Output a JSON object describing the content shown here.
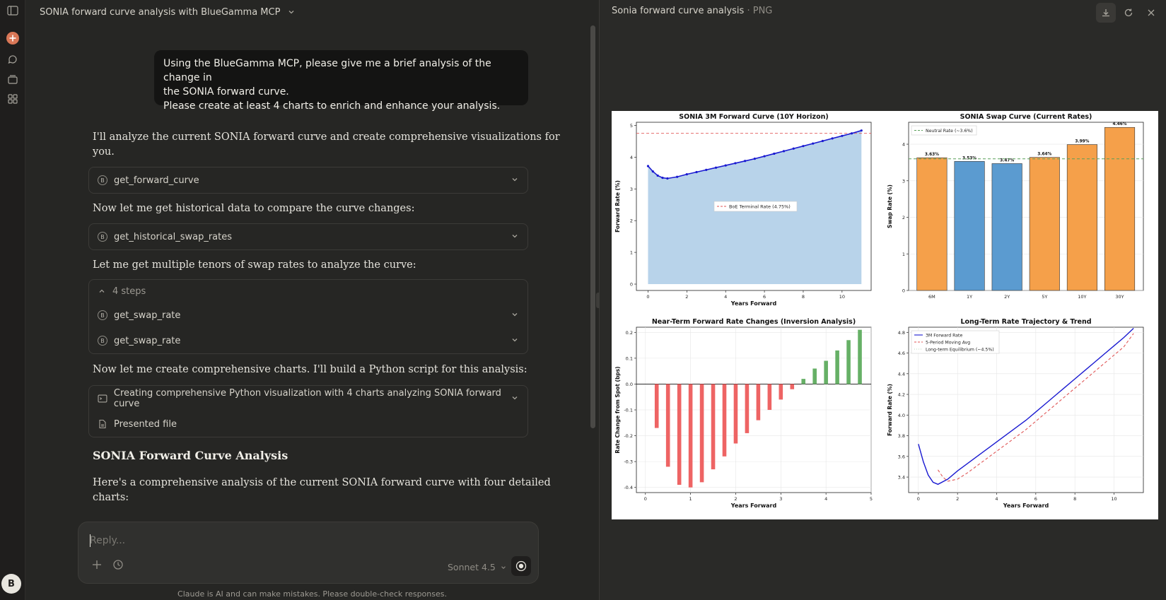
{
  "conversation": {
    "title": "SONIA forward curve analysis with BlueGamma MCP"
  },
  "user_message": {
    "line1": "Using the BlueGamma MCP, please give me a brief analysis of the change in",
    "line2": "the SONIA forward curve.",
    "line3": "Please create at least 4 charts to enrich and enhance your analysis."
  },
  "assistant": {
    "p1a": "I'll analyze the current SONIA forward curve and create comprehensive visualizations for",
    "p1b": "you.",
    "tool1": "get_forward_curve",
    "p2": "Now let me get historical data to compare the curve changes:",
    "tool2": "get_historical_swap_rates",
    "p3": "Let me get multiple tenors of swap rates to analyze the curve:",
    "steps_label": "4 steps",
    "step1": "get_swap_rate",
    "step2": "get_swap_rate",
    "p4": "Now let me create comprehensive charts. I'll build a Python script for this analysis:",
    "script_label": "Creating comprehensive Python visualization with 4 charts analyzing SONIA forward curve",
    "presented_label": "Presented file",
    "heading": "SONIA Forward Curve Analysis",
    "p5a": "Here's a comprehensive analysis of the current SONIA forward curve with four detailed",
    "p5b": "charts:",
    "tool_badge": "B"
  },
  "composer": {
    "placeholder": "Reply...",
    "model": "Sonnet 4.5",
    "disclaimer": "Claude is AI and can make mistakes. Please double-check responses."
  },
  "user_avatar": "B",
  "artifact": {
    "title": "Sonia forward curve analysis",
    "type": " · PNG"
  },
  "icons": {
    "sidebar_toggle": "sidebar-icon",
    "new_chat": "plus-circle-icon",
    "chats": "chat-bubble-icon",
    "projects": "stack-icon",
    "artifacts": "grid-icon",
    "download": "download-icon",
    "refresh": "refresh-icon",
    "close": "close-icon",
    "accent_color": "#d97757"
  },
  "chart_data": [
    {
      "type": "area",
      "title": "SONIA 3M Forward Curve (10Y Horizon)",
      "xlabel": "Years Forward",
      "ylabel": "Forward Rate (%)",
      "xlim": [
        -0.6,
        11.5
      ],
      "ylim": [
        -0.2,
        5.1
      ],
      "xticks": [
        0,
        2,
        4,
        6,
        8,
        10
      ],
      "yticks": [
        0,
        1,
        2,
        3,
        4,
        5
      ],
      "x": [
        0,
        0.25,
        0.5,
        0.75,
        1,
        1.5,
        2,
        2.5,
        3,
        3.5,
        4,
        4.5,
        5,
        5.5,
        6,
        6.5,
        7,
        7.5,
        8,
        8.5,
        9,
        9.5,
        10,
        10.5,
        11
      ],
      "values": [
        3.72,
        3.55,
        3.42,
        3.35,
        3.33,
        3.38,
        3.46,
        3.53,
        3.6,
        3.67,
        3.74,
        3.81,
        3.88,
        3.95,
        4.03,
        4.11,
        4.19,
        4.27,
        4.35,
        4.43,
        4.51,
        4.59,
        4.67,
        4.75,
        4.84
      ],
      "reference_line": {
        "label": "BoE Terminal Rate (4.75%)",
        "value": 4.75,
        "color": "#e05555"
      },
      "series_color": "#1a1ad1",
      "fill_color": "#b8d3ea"
    },
    {
      "type": "bar",
      "title": "SONIA Swap Curve (Current Rates)",
      "xlabel": "",
      "ylabel": "Swap Rate (%)",
      "ylim": [
        0,
        4.6
      ],
      "yticks": [
        0,
        1,
        2,
        3,
        4
      ],
      "categories": [
        "6M",
        "1Y",
        "2Y",
        "5Y",
        "10Y",
        "30Y"
      ],
      "values": [
        3.63,
        3.53,
        3.47,
        3.64,
        3.99,
        4.46
      ],
      "labels": [
        "3.63%",
        "3.53%",
        "3.47%",
        "3.64%",
        "3.99%",
        "4.46%"
      ],
      "colors": [
        "#f5a04a",
        "#5b9bd0",
        "#5b9bd0",
        "#f5a04a",
        "#f5a04a",
        "#f5a04a"
      ],
      "reference_line": {
        "label": "Neutral Rate (~3.6%)",
        "value": 3.6,
        "color": "#5aa05a"
      }
    },
    {
      "type": "bar",
      "title": "Near-Term Forward Rate Changes (Inversion Analysis)",
      "xlabel": "Years Forward",
      "ylabel": "Rate Change from Spot (bps)",
      "xlim": [
        -0.2,
        5
      ],
      "ylim": [
        -0.42,
        0.22
      ],
      "xticks": [
        0,
        1,
        2,
        3,
        4,
        5
      ],
      "yticks": [
        -0.4,
        -0.3,
        -0.2,
        -0.1,
        0.0,
        0.1,
        0.2
      ],
      "x": [
        0.25,
        0.5,
        0.75,
        1.0,
        1.25,
        1.5,
        1.75,
        2.0,
        2.25,
        2.5,
        2.75,
        3.0,
        3.25,
        3.5,
        3.75,
        4.0,
        4.25,
        4.5,
        4.75
      ],
      "values": [
        -0.17,
        -0.32,
        -0.39,
        -0.4,
        -0.38,
        -0.33,
        -0.28,
        -0.23,
        -0.19,
        -0.14,
        -0.1,
        -0.06,
        -0.02,
        0.02,
        0.06,
        0.09,
        0.13,
        0.17,
        0.21
      ],
      "negative_color": "#ee6464",
      "positive_color": "#66b066"
    },
    {
      "type": "line",
      "title": "Long-Term Rate Trajectory & Trend",
      "xlabel": "Years Forward",
      "ylabel": "Forward Rate (%)",
      "xlim": [
        -0.5,
        11.5
      ],
      "ylim": [
        3.25,
        4.85
      ],
      "xticks": [
        0,
        2,
        4,
        6,
        8,
        10
      ],
      "yticks": [
        3.4,
        3.6,
        3.8,
        4.0,
        4.2,
        4.4,
        4.6,
        4.8
      ],
      "series": [
        {
          "name": "3M Forward Rate",
          "color": "#1a1ad1",
          "style": "solid",
          "x": [
            0,
            0.25,
            0.5,
            0.75,
            1,
            1.5,
            2,
            2.5,
            3,
            3.5,
            4,
            4.5,
            5,
            5.5,
            6,
            6.5,
            7,
            7.5,
            8,
            8.5,
            9,
            9.5,
            10,
            10.5,
            11
          ],
          "values": [
            3.72,
            3.55,
            3.42,
            3.35,
            3.33,
            3.38,
            3.46,
            3.53,
            3.6,
            3.67,
            3.74,
            3.81,
            3.88,
            3.95,
            4.03,
            4.11,
            4.19,
            4.27,
            4.35,
            4.43,
            4.51,
            4.59,
            4.67,
            4.75,
            4.84
          ]
        },
        {
          "name": "5-Period Moving Avg",
          "color": "#e05555",
          "style": "dashed",
          "x": [
            1,
            1.25,
            1.5,
            2,
            2.5,
            3,
            3.5,
            4,
            4.5,
            5,
            5.5,
            6,
            6.5,
            7,
            7.5,
            8,
            8.5,
            9,
            9.5,
            10,
            10.5,
            11
          ],
          "values": [
            3.47,
            3.4,
            3.36,
            3.38,
            3.44,
            3.51,
            3.58,
            3.65,
            3.72,
            3.79,
            3.86,
            3.94,
            4.02,
            4.1,
            4.18,
            4.26,
            4.34,
            4.42,
            4.5,
            4.58,
            4.66,
            4.79
          ]
        },
        {
          "name": "Long-term Equilibrium (~4.5%)",
          "color": "#5aa05a",
          "style": "dotted",
          "x": [],
          "values": []
        }
      ]
    }
  ]
}
